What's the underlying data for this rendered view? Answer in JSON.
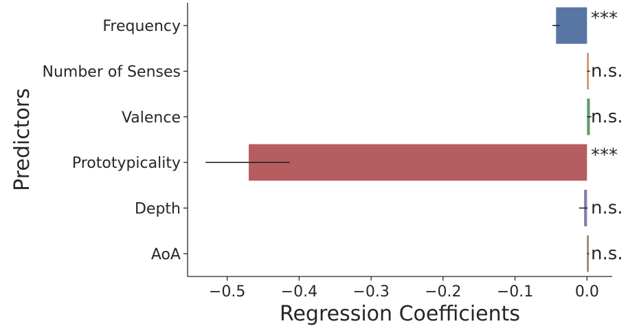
{
  "chart_data": {
    "type": "bar",
    "orientation": "horizontal",
    "xlabel": "Regression Coefficients",
    "ylabel": "Predictors",
    "xlim": [
      -0.555,
      0.035
    ],
    "xticks": [
      -0.5,
      -0.4,
      -0.3,
      -0.2,
      -0.1,
      0.0
    ],
    "xtick_labels": [
      "−0.5",
      "−0.4",
      "−0.3",
      "−0.2",
      "−0.1",
      "0.0"
    ],
    "grid": false,
    "categories": [
      "Frequency",
      "Number of Senses",
      "Valence",
      "Prototypicality",
      "Depth",
      "AoA"
    ],
    "values": [
      -0.043,
      0.002,
      0.004,
      -0.47,
      -0.004,
      0.002
    ],
    "error_low": [
      -0.048,
      0.0,
      0.0,
      -0.53,
      -0.011,
      0.0
    ],
    "error_high": [
      -0.038,
      0.004,
      0.006,
      -0.413,
      0.001,
      0.003
    ],
    "colors": [
      "#5875a4",
      "#cc8963",
      "#5f9e6e",
      "#b55d60",
      "#857aab",
      "#8d7866"
    ],
    "significance": [
      "***",
      "n.s.",
      "n.s.",
      "***",
      "n.s.",
      "n.s."
    ]
  }
}
